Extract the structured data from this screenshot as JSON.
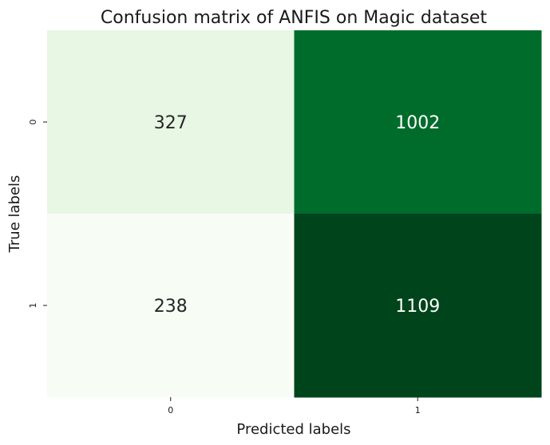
{
  "chart_data": {
    "type": "heatmap",
    "title": "Confusion matrix of ANFIS on Magic dataset",
    "xlabel": "Predicted labels",
    "ylabel": "True labels",
    "x_categories": [
      "0",
      "1"
    ],
    "y_categories": [
      "0",
      "1"
    ],
    "values": [
      [
        327,
        1002
      ],
      [
        238,
        1109
      ]
    ],
    "colormap": "Greens",
    "colorbar": false,
    "annotated": true
  }
}
